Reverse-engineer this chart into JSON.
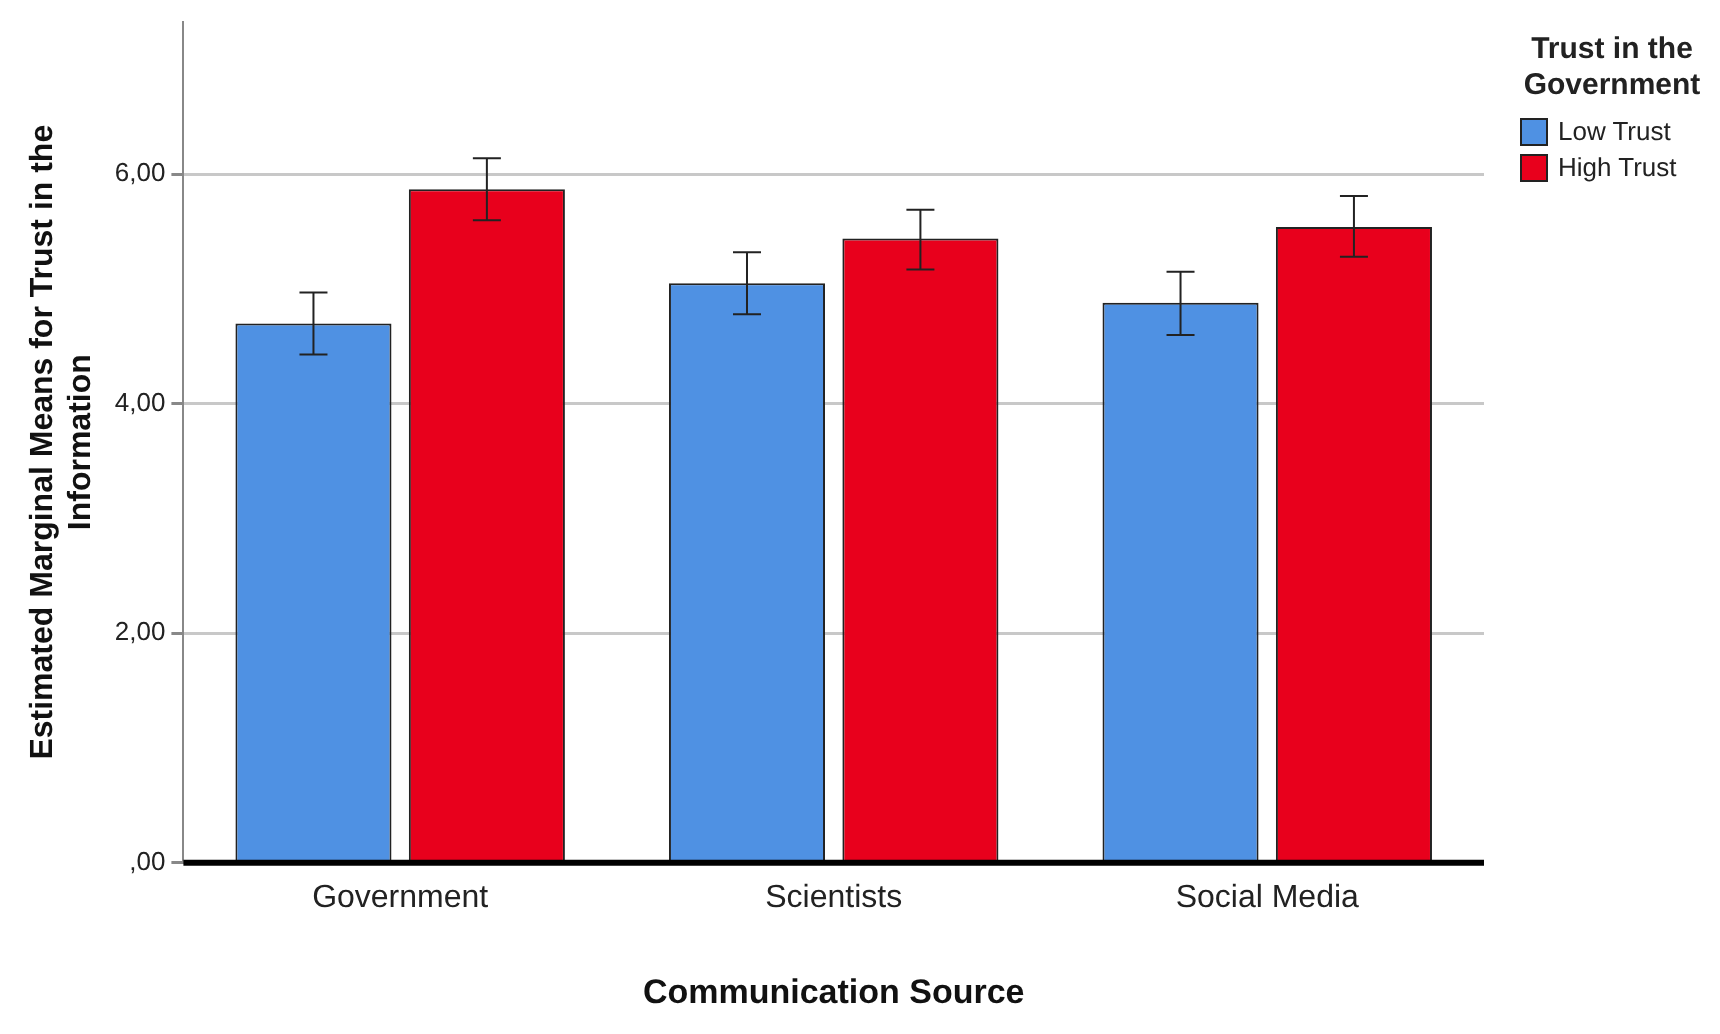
{
  "chart_data": {
    "type": "bar",
    "xlabel": "Communication Source",
    "ylabel": "Estimated Marginal Means for Trust in the Information",
    "legend_title": "Trust in the Government",
    "categories": [
      "Government",
      "Scientists",
      "Social Media"
    ],
    "series": [
      {
        "name": "Low Trust",
        "color": "#4f91e3",
        "values": [
          4.7,
          5.05,
          4.88
        ],
        "errors": [
          [
            4.43,
            4.97
          ],
          [
            4.78,
            5.32
          ],
          [
            4.6,
            5.15
          ]
        ]
      },
      {
        "name": "High Trust",
        "color": "#e8001c",
        "values": [
          5.87,
          5.44,
          5.54
        ],
        "errors": [
          [
            5.6,
            6.14
          ],
          [
            5.17,
            5.69
          ],
          [
            5.28,
            5.81
          ]
        ]
      }
    ],
    "ylim": [
      0,
      7.33
    ],
    "yticks": [
      {
        "value": 0,
        "label": ",00"
      },
      {
        "value": 2,
        "label": "2,00"
      },
      {
        "value": 4,
        "label": "4,00"
      },
      {
        "value": 6,
        "label": "6,00"
      }
    ],
    "grid": "y",
    "legend": "top right"
  }
}
